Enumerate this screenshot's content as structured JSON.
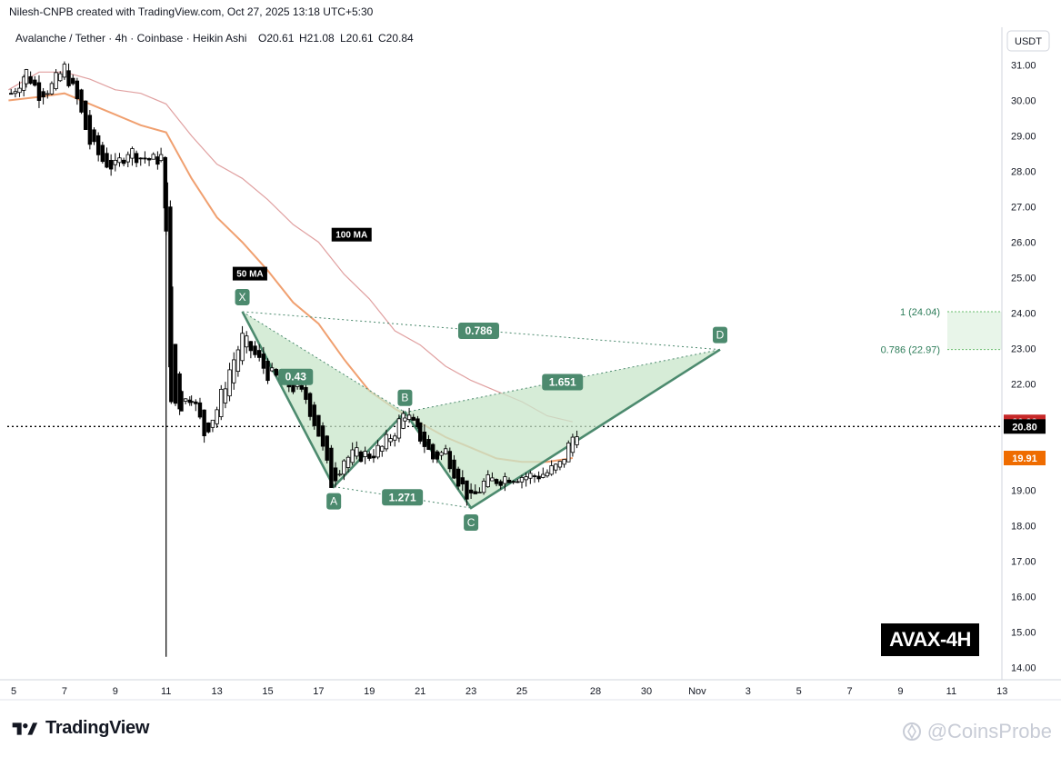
{
  "header": {
    "created_by": "Nilesh-CNPB created with TradingView.com, Oct 27, 2025 13:18 UTC+5:30"
  },
  "instrument": {
    "label": "Avalanche / Tether · 4h · Coinbase · Heikin Ashi",
    "open": "O20.61",
    "high": "H21.08",
    "low": "L20.61",
    "close": "C20.84",
    "currency": "USDT"
  },
  "chart_data": {
    "type": "candlestick",
    "y_axis": {
      "min": 14.0,
      "max": 31.0,
      "ticks": [
        "31.00",
        "30.00",
        "29.00",
        "28.00",
        "27.00",
        "26.00",
        "25.00",
        "24.00",
        "23.00",
        "22.00",
        "21.00",
        "20.00",
        "19.00",
        "18.00",
        "17.00",
        "16.00",
        "15.00",
        "14.00"
      ]
    },
    "x_axis": {
      "ticks": [
        {
          "label": "5",
          "day": 5
        },
        {
          "label": "7",
          "day": 7
        },
        {
          "label": "9",
          "day": 9
        },
        {
          "label": "11",
          "day": 11
        },
        {
          "label": "13",
          "day": 13
        },
        {
          "label": "15",
          "day": 15
        },
        {
          "label": "17",
          "day": 17
        },
        {
          "label": "19",
          "day": 19
        },
        {
          "label": "21",
          "day": 21
        },
        {
          "label": "23",
          "day": 23
        },
        {
          "label": "25",
          "day": 25
        },
        {
          "label": "28",
          "day": 27.9
        },
        {
          "label": "30",
          "day": 29.9
        },
        {
          "label": "Nov",
          "day": 31.9
        },
        {
          "label": "3",
          "day": 33.9
        },
        {
          "label": "5",
          "day": 35.9
        },
        {
          "label": "7",
          "day": 37.9
        },
        {
          "label": "9",
          "day": 39.9
        },
        {
          "label": "11",
          "day": 41.9
        },
        {
          "label": "13",
          "day": 43.9
        }
      ]
    },
    "price_labels": [
      {
        "value": "20.93",
        "price": 20.93,
        "color": "#c62828"
      },
      {
        "value": "20.80",
        "price": 20.8,
        "color": "#000000"
      },
      {
        "value": "19.91",
        "price": 19.91,
        "color": "#ef6c00"
      }
    ],
    "current_price": 20.8,
    "candles_anchor": [
      [
        4.9,
        30.2
      ],
      [
        5.5,
        30.8
      ],
      [
        6.0,
        30.2
      ],
      [
        6.5,
        30.4
      ],
      [
        7.0,
        30.9
      ],
      [
        7.5,
        30.0
      ],
      [
        8.0,
        28.8
      ],
      [
        8.5,
        28.3
      ],
      [
        9.0,
        28.1
      ],
      [
        9.5,
        28.6
      ],
      [
        10.0,
        28.4
      ],
      [
        10.5,
        28.3
      ],
      [
        10.8,
        28.4
      ],
      [
        11.0,
        26.5
      ],
      [
        11.2,
        21.5
      ],
      [
        11.6,
        21.4
      ],
      [
        12.0,
        21.7
      ],
      [
        12.5,
        20.6
      ],
      [
        13.0,
        21.3
      ],
      [
        13.5,
        22.4
      ],
      [
        14.0,
        23.3
      ],
      [
        14.5,
        22.8
      ],
      [
        15.0,
        22.3
      ],
      [
        15.5,
        22.1
      ],
      [
        16.0,
        21.9
      ],
      [
        16.5,
        21.6
      ],
      [
        17.0,
        20.6
      ],
      [
        17.5,
        19.2
      ],
      [
        18.0,
        19.9
      ],
      [
        18.5,
        20.0
      ],
      [
        19.0,
        20.0
      ],
      [
        19.5,
        20.2
      ],
      [
        20.0,
        20.7
      ],
      [
        20.4,
        21.2
      ],
      [
        21.0,
        20.5
      ],
      [
        21.5,
        19.9
      ],
      [
        22.0,
        20.1
      ],
      [
        22.5,
        19.3
      ],
      [
        23.0,
        18.7
      ],
      [
        23.5,
        19.2
      ],
      [
        24.0,
        19.3
      ],
      [
        24.5,
        19.4
      ],
      [
        25.0,
        19.4
      ],
      [
        25.5,
        19.4
      ],
      [
        26.0,
        19.5
      ],
      [
        26.5,
        19.7
      ],
      [
        27.0,
        20.5
      ],
      [
        27.25,
        20.84
      ]
    ],
    "ma50": [
      [
        4.8,
        30.0
      ],
      [
        6,
        30.1
      ],
      [
        7,
        30.2
      ],
      [
        8,
        29.9
      ],
      [
        9,
        29.6
      ],
      [
        10,
        29.3
      ],
      [
        11,
        29.1
      ],
      [
        12,
        27.8
      ],
      [
        13,
        26.7
      ],
      [
        14,
        26.0
      ],
      [
        15,
        25.2
      ],
      [
        16,
        24.3
      ],
      [
        17,
        23.7
      ],
      [
        18,
        22.7
      ],
      [
        19,
        21.8
      ],
      [
        20,
        21.3
      ],
      [
        21,
        20.9
      ],
      [
        22,
        20.5
      ],
      [
        23,
        20.2
      ],
      [
        24,
        19.9
      ],
      [
        25,
        19.8
      ],
      [
        26,
        19.8
      ],
      [
        27,
        19.91
      ]
    ],
    "ma100": [
      [
        4.8,
        30.3
      ],
      [
        6,
        30.8
      ],
      [
        7,
        30.8
      ],
      [
        8,
        30.6
      ],
      [
        9,
        30.3
      ],
      [
        10,
        30.2
      ],
      [
        11,
        29.9
      ],
      [
        12,
        29.0
      ],
      [
        13,
        28.2
      ],
      [
        14,
        27.8
      ],
      [
        15,
        27.2
      ],
      [
        16,
        26.5
      ],
      [
        17,
        26.0
      ],
      [
        18,
        25.1
      ],
      [
        19,
        24.4
      ],
      [
        20,
        23.5
      ],
      [
        21,
        23.1
      ],
      [
        22,
        22.5
      ],
      [
        23,
        22.1
      ],
      [
        24,
        21.8
      ],
      [
        25,
        21.5
      ],
      [
        26,
        21.1
      ],
      [
        27,
        20.93
      ]
    ],
    "indicator_labels": [
      {
        "text": "100 MA",
        "day": 18.3,
        "price": 26.2
      },
      {
        "text": "50 MA",
        "day": 14.3,
        "price": 25.1
      }
    ],
    "harmonic": {
      "points": [
        {
          "name": "X",
          "day": 14.0,
          "price": 24.04,
          "label_pos": "above"
        },
        {
          "name": "A",
          "day": 17.6,
          "price": 19.1,
          "label_pos": "below"
        },
        {
          "name": "B",
          "day": 20.4,
          "price": 21.2,
          "label_pos": "above"
        },
        {
          "name": "C",
          "day": 23.0,
          "price": 18.5,
          "label_pos": "below"
        },
        {
          "name": "D",
          "day": 32.8,
          "price": 22.97,
          "label_pos": "above"
        }
      ],
      "ratios": [
        {
          "text": "0.43",
          "day": 16.1,
          "price": 22.2
        },
        {
          "text": "1.271",
          "day": 20.3,
          "price": 18.8
        },
        {
          "text": "1.651",
          "day": 26.6,
          "price": 22.05
        },
        {
          "text": "0.786",
          "day": 23.3,
          "price": 23.5
        }
      ],
      "targets": [
        {
          "text": "1 (24.04)",
          "price": 24.04
        },
        {
          "text": "0.786 (22.97)",
          "price": 22.97
        }
      ]
    },
    "low_wick": {
      "day": 11.0,
      "price": 14.3
    },
    "annotation": "AVAX-4H"
  },
  "footer": {
    "brand": "TradingView",
    "watermark": "@CoinsProbe"
  },
  "colors": {
    "bull": "#ffffff",
    "bear": "#000000",
    "ma50": "#f0a070",
    "ma100": "#e0a0a0",
    "harmonic_fill": "#c8e6c9",
    "harmonic_line": "#4c8a6e",
    "label_bg": "#4c8a6e"
  }
}
